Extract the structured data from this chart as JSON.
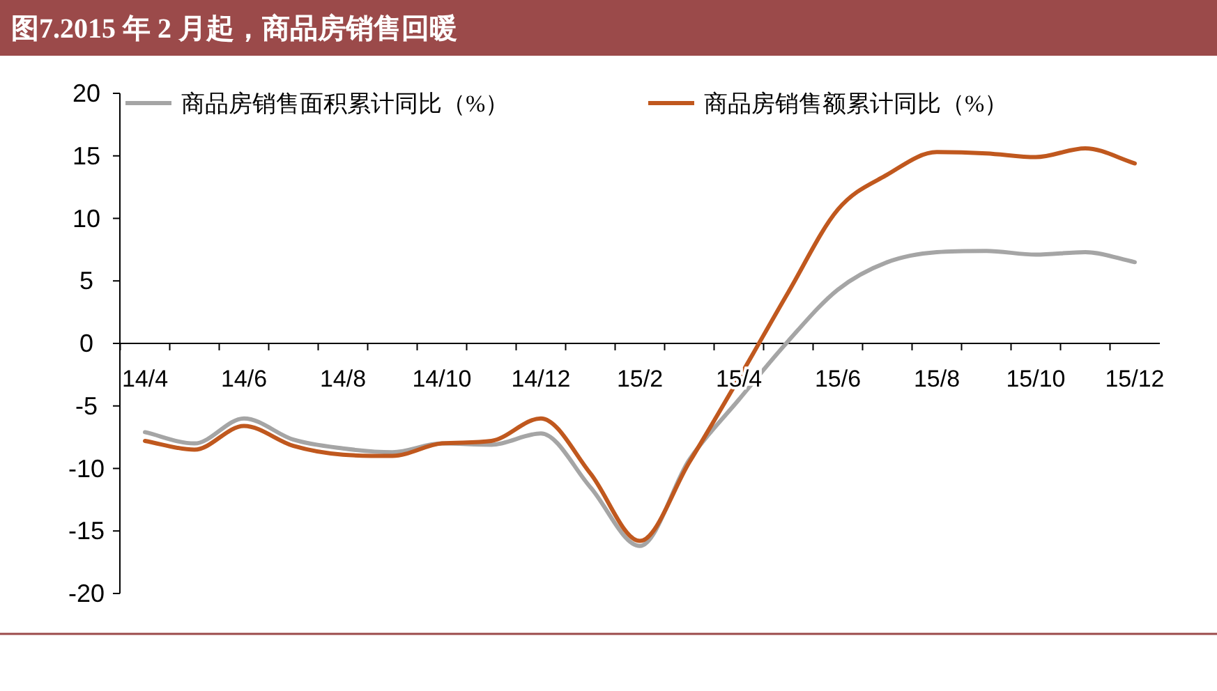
{
  "chart_data": {
    "type": "line",
    "title": "图7.2015 年 2 月起，商品房销售回暖",
    "categories": [
      "14/4",
      null,
      "14/6",
      null,
      "14/8",
      null,
      "14/10",
      null,
      "14/12",
      null,
      "15/2",
      null,
      "15/4",
      null,
      "15/6",
      null,
      "15/8",
      null,
      "15/10",
      null,
      "15/12"
    ],
    "series": [
      {
        "name": "商品房销售面积累计同比（%）",
        "color": "#a5a5a5",
        "values": [
          -7.1,
          -8.0,
          -6.0,
          -7.7,
          -8.4,
          -8.7,
          -8.0,
          -8.1,
          -7.2,
          -11.5,
          -16.2,
          -9.3,
          -4.5,
          0.2,
          4.3,
          6.5,
          7.3,
          7.4,
          7.1,
          7.3,
          6.5
        ]
      },
      {
        "name": "商品房销售额累计同比（%）",
        "color": "#c0581e",
        "values": [
          -7.8,
          -8.5,
          -6.6,
          -8.2,
          -8.9,
          -9.0,
          -8.0,
          -7.8,
          -6.0,
          -10.4,
          -15.8,
          -9.5,
          -2.8,
          4.1,
          10.7,
          13.5,
          15.3,
          15.2,
          14.9,
          15.6,
          14.4
        ]
      }
    ],
    "ylim": [
      -20,
      20
    ],
    "yticks": [
      -20,
      -15,
      -10,
      -5,
      0,
      5,
      10,
      15,
      20
    ],
    "grid": false,
    "legend": "top",
    "marker": "none",
    "line_style": "solid"
  }
}
